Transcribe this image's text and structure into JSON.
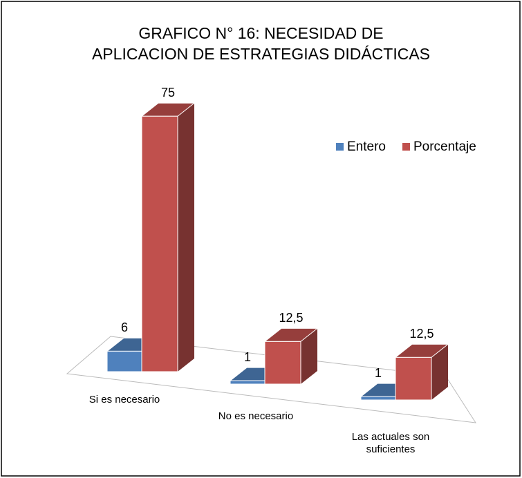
{
  "chart_data": {
    "type": "bar3d",
    "title": "GRAFICO N° 16: NECESIDAD DE APLICACION DE ESTRATEGIAS DIDÁCTICAS",
    "categories": [
      "Si es necesario",
      "No es necesario",
      "Las actuales son suficientes"
    ],
    "series": [
      {
        "name": "Entero",
        "color": "#4f81bd",
        "values": [
          6,
          1,
          1
        ]
      },
      {
        "name": "Porcentaje",
        "color": "#c0504d",
        "values": [
          75,
          12.5,
          12.5
        ],
        "value_labels": [
          "75",
          "12,5",
          "12,5"
        ]
      }
    ],
    "legend": "right"
  }
}
